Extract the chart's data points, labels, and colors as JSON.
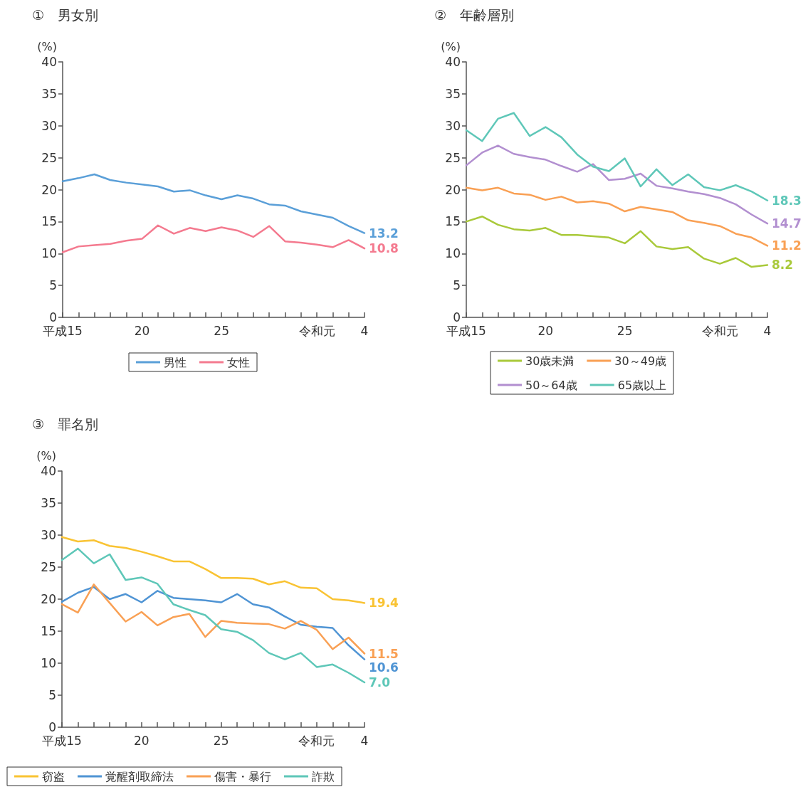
{
  "chart_data": [
    {
      "type": "line",
      "title": "①　男女別",
      "ylabel": "(%)",
      "categories": [
        "平成15",
        null,
        null,
        null,
        null,
        "20",
        null,
        null,
        null,
        null,
        "25",
        null,
        null,
        null,
        null,
        null,
        "令和元",
        null,
        null,
        "4"
      ],
      "ylim": [
        0,
        40
      ],
      "yticks": [
        0,
        5,
        10,
        15,
        20,
        25,
        30,
        35,
        40
      ],
      "legend": "bottom",
      "marker": "none",
      "line_style": "solid",
      "series": [
        {
          "name": "男性",
          "color": "#5a9fd8",
          "values": [
            21.3,
            21.8,
            22.4,
            21.5,
            21.1,
            20.8,
            20.5,
            19.7,
            19.9,
            19.1,
            18.5,
            19.1,
            18.6,
            17.7,
            17.5,
            16.6,
            16.1,
            15.6,
            14.3,
            13.2
          ],
          "value_labels": [
            null,
            null,
            null,
            null,
            null,
            null,
            null,
            null,
            null,
            null,
            null,
            null,
            null,
            null,
            null,
            null,
            null,
            null,
            null,
            "13.2"
          ]
        },
        {
          "name": "女性",
          "color": "#f47a8f",
          "values": [
            10.2,
            11.1,
            11.3,
            11.5,
            12.0,
            12.3,
            14.4,
            13.1,
            14.0,
            13.5,
            14.1,
            13.6,
            12.6,
            14.3,
            11.9,
            11.7,
            11.4,
            11.0,
            12.1,
            10.8
          ],
          "value_labels": [
            null,
            null,
            null,
            null,
            null,
            null,
            null,
            null,
            null,
            null,
            null,
            null,
            null,
            null,
            null,
            null,
            null,
            null,
            null,
            "10.8"
          ]
        }
      ]
    },
    {
      "type": "line",
      "title": "②　年齢層別",
      "ylabel": "(%)",
      "categories": [
        "平成15",
        null,
        null,
        null,
        null,
        "20",
        null,
        null,
        null,
        null,
        "25",
        null,
        null,
        null,
        null,
        null,
        "令和元",
        null,
        null,
        "4"
      ],
      "ylim": [
        0,
        40
      ],
      "yticks": [
        0,
        5,
        10,
        15,
        20,
        25,
        30,
        35,
        40
      ],
      "legend": "bottom",
      "marker": "none",
      "line_style": "solid",
      "series": [
        {
          "name": "30歳未満",
          "color": "#a9c93a",
          "values": [
            15.0,
            15.8,
            14.5,
            13.8,
            13.6,
            14.0,
            12.9,
            12.9,
            12.7,
            12.5,
            11.6,
            13.5,
            11.1,
            10.7,
            11.0,
            9.2,
            8.4,
            9.3,
            7.9,
            8.2
          ],
          "value_labels": [
            null,
            null,
            null,
            null,
            null,
            null,
            null,
            null,
            null,
            null,
            null,
            null,
            null,
            null,
            null,
            null,
            null,
            null,
            null,
            "8.2"
          ]
        },
        {
          "name": "30～49歳",
          "color": "#f9a054",
          "values": [
            20.3,
            19.9,
            20.3,
            19.4,
            19.2,
            18.4,
            18.9,
            18.0,
            18.2,
            17.8,
            16.6,
            17.3,
            16.9,
            16.5,
            15.2,
            14.8,
            14.3,
            13.1,
            12.5,
            11.2
          ],
          "value_labels": [
            null,
            null,
            null,
            null,
            null,
            null,
            null,
            null,
            null,
            null,
            null,
            null,
            null,
            null,
            null,
            null,
            null,
            null,
            null,
            "11.2"
          ]
        },
        {
          "name": "50～64歳",
          "color": "#b28fd0",
          "values": [
            23.8,
            25.8,
            26.9,
            25.6,
            25.1,
            24.7,
            23.7,
            22.8,
            24.0,
            21.5,
            21.7,
            22.5,
            20.6,
            20.2,
            19.7,
            19.3,
            18.7,
            17.7,
            16.1,
            14.7
          ],
          "value_labels": [
            null,
            null,
            null,
            null,
            null,
            null,
            null,
            null,
            null,
            null,
            null,
            null,
            null,
            null,
            null,
            null,
            null,
            null,
            null,
            "14.7"
          ]
        },
        {
          "name": "65歳以上",
          "color": "#5ec7b8",
          "values": [
            29.3,
            27.6,
            31.1,
            32.0,
            28.4,
            29.8,
            28.2,
            25.5,
            23.6,
            22.9,
            24.9,
            20.5,
            23.2,
            20.7,
            22.4,
            20.4,
            19.9,
            20.7,
            19.7,
            18.3
          ],
          "value_labels": [
            null,
            null,
            null,
            null,
            null,
            null,
            null,
            null,
            null,
            null,
            null,
            null,
            null,
            null,
            null,
            null,
            null,
            null,
            null,
            "18.3"
          ]
        }
      ]
    },
    {
      "type": "line",
      "title": "③　罪名別",
      "ylabel": "(%)",
      "categories": [
        "平成15",
        null,
        null,
        null,
        null,
        "20",
        null,
        null,
        null,
        null,
        "25",
        null,
        null,
        null,
        null,
        null,
        "令和元",
        null,
        null,
        "4"
      ],
      "ylim": [
        0,
        40
      ],
      "yticks": [
        0,
        5,
        10,
        15,
        20,
        25,
        30,
        35,
        40
      ],
      "legend": "bottom",
      "marker": "none",
      "line_style": "solid",
      "series": [
        {
          "name": "窃盗",
          "color": "#f9c333",
          "values": [
            29.7,
            29.0,
            29.2,
            28.3,
            28.0,
            27.4,
            26.7,
            25.9,
            25.9,
            24.7,
            23.3,
            23.3,
            23.2,
            22.3,
            22.8,
            21.8,
            21.7,
            20.0,
            19.8,
            19.4
          ],
          "value_labels": [
            null,
            null,
            null,
            null,
            null,
            null,
            null,
            null,
            null,
            null,
            null,
            null,
            null,
            null,
            null,
            null,
            null,
            null,
            null,
            "19.4"
          ]
        },
        {
          "name": "覚醒剤取締法",
          "color": "#4f94d4",
          "values": [
            19.6,
            21.0,
            21.9,
            20.0,
            20.8,
            19.5,
            21.3,
            20.2,
            20.0,
            19.8,
            19.5,
            20.8,
            19.2,
            18.7,
            17.3,
            16.0,
            15.7,
            15.5,
            12.8,
            10.6
          ],
          "value_labels": [
            null,
            null,
            null,
            null,
            null,
            null,
            null,
            null,
            null,
            null,
            null,
            null,
            null,
            null,
            null,
            null,
            null,
            null,
            null,
            "10.6"
          ]
        },
        {
          "name": "傷害・暴行",
          "color": "#f9a054",
          "values": [
            19.2,
            17.9,
            22.3,
            19.4,
            16.5,
            18.0,
            15.9,
            17.2,
            17.7,
            14.1,
            16.6,
            16.3,
            16.2,
            16.1,
            15.4,
            16.6,
            15.2,
            12.2,
            14.0,
            11.5
          ],
          "value_labels": [
            null,
            null,
            null,
            null,
            null,
            null,
            null,
            null,
            null,
            null,
            null,
            null,
            null,
            null,
            null,
            null,
            null,
            null,
            null,
            "11.5"
          ]
        },
        {
          "name": "詐欺",
          "color": "#5ec7b8",
          "values": [
            26.1,
            27.9,
            25.6,
            27.0,
            23.0,
            23.4,
            22.4,
            19.2,
            18.3,
            17.5,
            15.3,
            14.9,
            13.6,
            11.6,
            10.6,
            11.6,
            9.4,
            9.8,
            8.5,
            7.0
          ],
          "value_labels": [
            null,
            null,
            null,
            null,
            null,
            null,
            null,
            null,
            null,
            null,
            null,
            null,
            null,
            null,
            null,
            null,
            null,
            null,
            null,
            "7.0"
          ]
        }
      ]
    }
  ]
}
